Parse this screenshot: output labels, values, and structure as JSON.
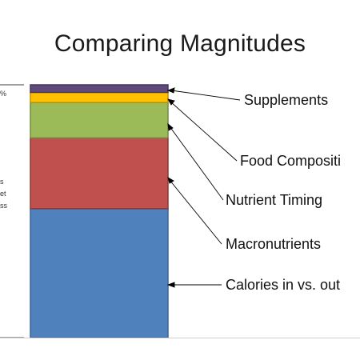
{
  "slide": {
    "title": "Comparing Magnitudes",
    "left_fragments": [
      "%",
      "s",
      "et",
      "ss"
    ]
  },
  "stack": {
    "segments": [
      {
        "label": "Calories in vs. out",
        "value": 51,
        "color": "#4f81bd",
        "edge": "#3b6496"
      },
      {
        "label": "Macronutrients",
        "value": 28,
        "color": "#c0504d",
        "edge": "#8c3836"
      },
      {
        "label": "Nutrient Timing",
        "value": 14,
        "color": "#9bbb59",
        "edge": "#72893f"
      },
      {
        "label": "Food Composition",
        "value": 4,
        "color": "#ffc000",
        "edge": "#c29200"
      },
      {
        "label": "Supplements",
        "value": 3,
        "color": "#604a7b",
        "edge": "#463659"
      }
    ]
  },
  "labels": {
    "supplements": "Supplements",
    "food_composition": "Food Compositi",
    "nutrient_timing": "Nutrient Timing",
    "macronutrients": "Macronutrients",
    "calories": "Calories in vs. out"
  }
}
